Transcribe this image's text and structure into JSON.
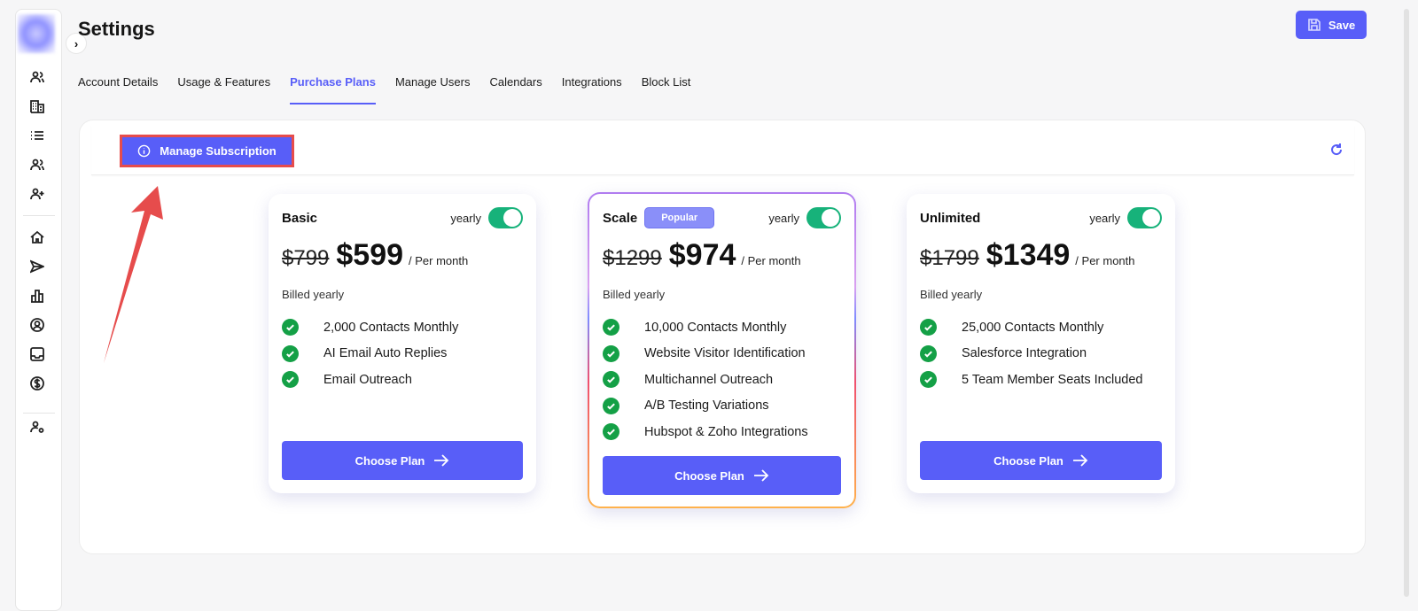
{
  "header": {
    "title": "Settings",
    "save_label": "Save"
  },
  "sidebar": {
    "icons": [
      "users-icon",
      "building-icon",
      "list-icon",
      "team-icon",
      "user-plus-icon",
      "home-icon",
      "send-icon",
      "chart-icon",
      "user-circle-icon",
      "inbox-icon",
      "dollar-icon",
      "user-settings-icon"
    ]
  },
  "tabs": [
    {
      "label": "Account Details"
    },
    {
      "label": "Usage & Features"
    },
    {
      "label": "Purchase Plans",
      "active": true
    },
    {
      "label": "Manage Users"
    },
    {
      "label": "Calendars"
    },
    {
      "label": "Integrations"
    },
    {
      "label": "Block List"
    }
  ],
  "panel": {
    "manage_label": "Manage Subscription"
  },
  "plans": [
    {
      "name": "Basic",
      "toggle_label": "yearly",
      "yearly": true,
      "old_price": "$799",
      "price": "$599",
      "per": "/ Per month",
      "billed": "Billed yearly",
      "features": [
        "2,000 Contacts Monthly",
        "AI Email Auto Replies",
        "Email Outreach"
      ],
      "cta": "Choose Plan"
    },
    {
      "name": "Scale",
      "badge": "Popular",
      "toggle_label": "yearly",
      "yearly": true,
      "old_price": "$1299",
      "price": "$974",
      "per": "/ Per month",
      "billed": "Billed yearly",
      "features": [
        "10,000 Contacts Monthly",
        "Website Visitor Identification",
        "Multichannel Outreach",
        "A/B Testing Variations",
        "Hubspot & Zoho Integrations"
      ],
      "cta": "Choose Plan"
    },
    {
      "name": "Unlimited",
      "toggle_label": "yearly",
      "yearly": true,
      "old_price": "$1799",
      "price": "$1349",
      "per": "/ Per month",
      "billed": "Billed yearly",
      "features": [
        "25,000 Contacts Monthly",
        "Salesforce Integration",
        "5 Team Member Seats Included"
      ],
      "cta": "Choose Plan"
    }
  ],
  "colors": {
    "accent": "#585ef8",
    "success": "#14a046",
    "toggle": "#17b27a",
    "annotation": "#e64c4c"
  }
}
